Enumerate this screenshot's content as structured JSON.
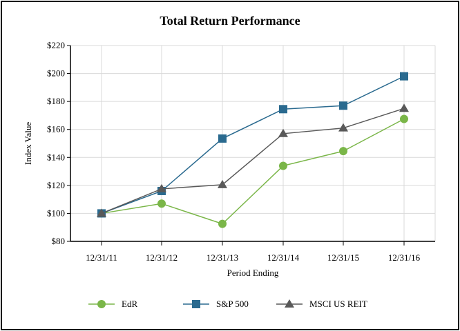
{
  "chart_data": {
    "type": "line",
    "title": "Total Return Performance",
    "xlabel": "Period Ending",
    "ylabel": "Index Value",
    "categories": [
      "12/31/11",
      "12/31/12",
      "12/31/13",
      "12/31/14",
      "12/31/15",
      "12/31/16"
    ],
    "ylim": [
      80,
      220
    ],
    "yticks": [
      80,
      100,
      120,
      140,
      160,
      180,
      200,
      220
    ],
    "ytick_labels": [
      "$80",
      "$100",
      "$120",
      "$140",
      "$160",
      "$180",
      "$200",
      "$220"
    ],
    "grid": true,
    "legend_position": "bottom",
    "series": [
      {
        "name": "EdR",
        "marker": "circle",
        "color": "#7ab648",
        "values": [
          100,
          107,
          92.5,
          134,
          144.5,
          167.5
        ]
      },
      {
        "name": "S&P 500",
        "marker": "square",
        "color": "#2a6a8f",
        "values": [
          100,
          116,
          153.5,
          174.5,
          177,
          198
        ]
      },
      {
        "name": "MSCI US REIT",
        "marker": "triangle",
        "color": "#595959",
        "values": [
          100,
          117.5,
          120.5,
          157,
          161,
          175
        ]
      }
    ]
  }
}
